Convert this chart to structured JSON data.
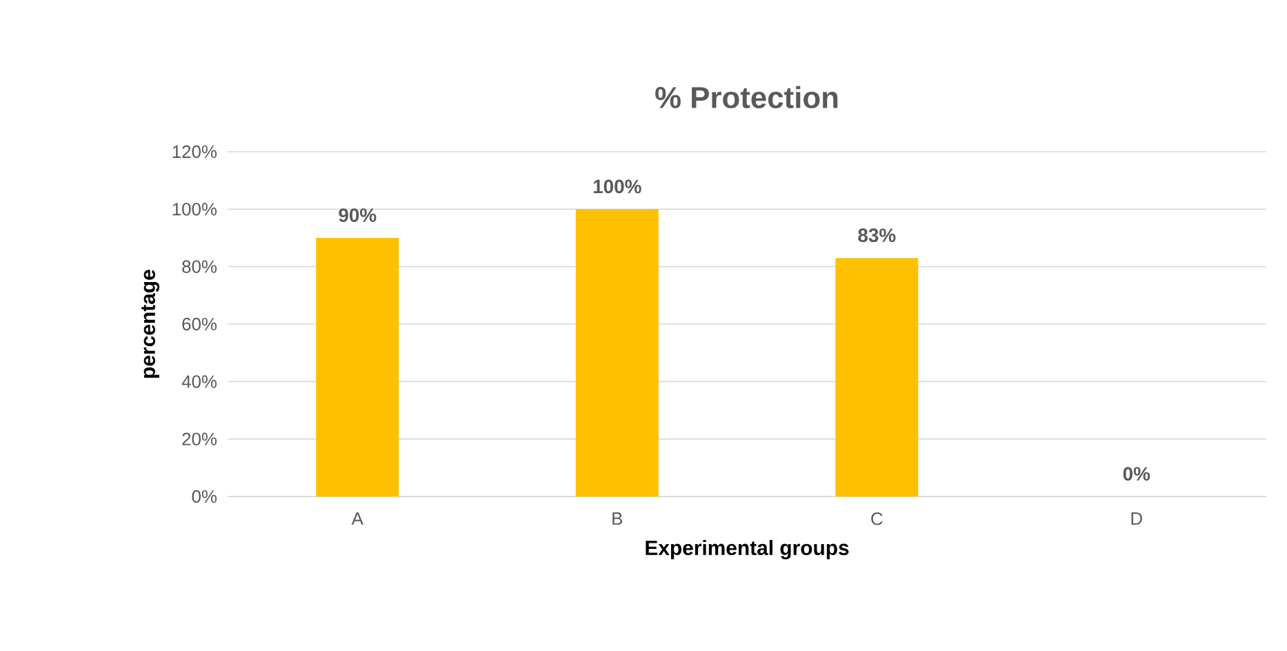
{
  "chart_data": {
    "type": "bar",
    "title": "% Protection",
    "xlabel": "Experimental groups",
    "ylabel": "percentage",
    "categories": [
      "A",
      "B",
      "C",
      "D"
    ],
    "values": [
      90,
      100,
      83,
      0
    ],
    "value_labels": [
      "90%",
      "100%",
      "83%",
      "0%"
    ],
    "color": "#ffc000",
    "ylim": [
      0,
      120
    ],
    "yticks": [
      {
        "value": 0,
        "label": "0%"
      },
      {
        "value": 20,
        "label": "20%"
      },
      {
        "value": 40,
        "label": "40%"
      },
      {
        "value": 60,
        "label": "60%"
      },
      {
        "value": 80,
        "label": "80%"
      },
      {
        "value": 100,
        "label": "100%"
      },
      {
        "value": 120,
        "label": "120%"
      }
    ],
    "grid": true
  }
}
